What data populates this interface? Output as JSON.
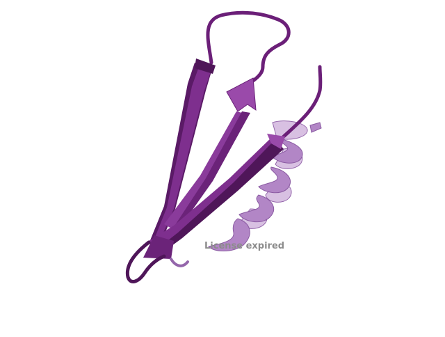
{
  "scene": {
    "structure_type": "protein cartoon: beta-sheet with alpha-helix",
    "background_color": "#ffffff",
    "colors": {
      "strand": "#7e2f8e",
      "strand_shadow": "#4f1659",
      "strand_light": "#9a4aaa",
      "loop": "#6b1f78",
      "helix_front": "#b286c6",
      "helix_back": "#d8c0e2",
      "helix_edge": "#9466ab"
    }
  },
  "watermark": {
    "text": "License expired"
  }
}
